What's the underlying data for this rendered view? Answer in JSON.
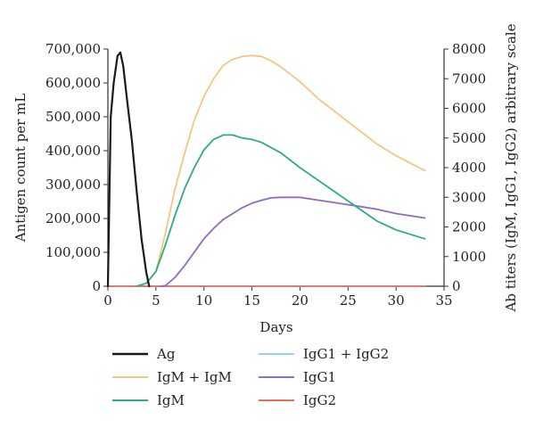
{
  "chart_data": {
    "type": "line",
    "title": "",
    "xlabel": "Days",
    "ylabel": "Antigen count per mL",
    "ylabel_right": "Ab titers (IgM, IgG1, IgG2) arbitrary scale",
    "xlim": [
      0,
      35
    ],
    "ylim": [
      0,
      700000
    ],
    "ylim_right": [
      0,
      8000
    ],
    "x_ticks": [
      0,
      5,
      10,
      15,
      20,
      25,
      30,
      35
    ],
    "y_ticks": [
      0,
      100000,
      200000,
      300000,
      400000,
      500000,
      600000,
      700000
    ],
    "y_tick_labels": [
      "0",
      "100,000",
      "200,000",
      "300,000",
      "400,000",
      "500,000",
      "600,000",
      "700,000"
    ],
    "y_ticks_right": [
      0,
      1000,
      2000,
      3000,
      4000,
      5000,
      6000,
      7000,
      8000
    ],
    "grid": false,
    "legend_position": "bottom",
    "series": [
      {
        "name": "Ag",
        "axis": "left",
        "color": "#1a1a1a",
        "x": [
          0,
          0.3,
          0.6,
          1,
          1.3,
          1.6,
          2,
          2.5,
          3,
          3.5,
          4,
          4.3
        ],
        "y": [
          0,
          500000,
          600000,
          680000,
          690000,
          650000,
          550000,
          430000,
          280000,
          140000,
          40000,
          0
        ]
      },
      {
        "name": "IgM + IgM",
        "axis": "right",
        "color": "#f5c77e",
        "x": [
          3,
          4,
          5,
          6,
          7,
          8,
          9,
          10,
          11,
          12,
          13,
          14,
          15,
          16,
          17,
          18,
          20,
          22,
          24,
          26,
          28,
          30,
          33
        ],
        "y": [
          0,
          100,
          500,
          1800,
          3300,
          4500,
          5600,
          6400,
          7000,
          7450,
          7650,
          7750,
          7780,
          7750,
          7600,
          7400,
          6900,
          6300,
          5800,
          5300,
          4800,
          4400,
          3900
        ]
      },
      {
        "name": "IgG1 + IgG2",
        "axis": "right",
        "color": "#9fd0ea",
        "x": [
          0,
          33
        ],
        "y": [
          0,
          0
        ]
      },
      {
        "name": "IgM",
        "axis": "right",
        "color": "#2dab82",
        "x": [
          3,
          4,
          5,
          6,
          7,
          8,
          9,
          10,
          11,
          12,
          13,
          14,
          15,
          16,
          18,
          20,
          22,
          24,
          26,
          28,
          30,
          33
        ],
        "y": [
          0,
          100,
          500,
          1400,
          2400,
          3300,
          4000,
          4600,
          4950,
          5100,
          5100,
          5000,
          4950,
          4850,
          4500,
          4000,
          3550,
          3100,
          2650,
          2200,
          1900,
          1600
        ]
      },
      {
        "name": "IgG1",
        "axis": "right",
        "color": "#8e6cc0",
        "x": [
          5.5,
          6,
          7,
          8,
          9,
          10,
          11,
          12,
          13,
          14,
          15,
          16,
          17,
          18,
          20,
          22,
          24,
          26,
          28,
          30,
          33
        ],
        "y": [
          0,
          20,
          300,
          700,
          1150,
          1600,
          1950,
          2250,
          2450,
          2650,
          2800,
          2900,
          2980,
          3000,
          3000,
          2900,
          2800,
          2700,
          2600,
          2450,
          2300
        ]
      },
      {
        "name": "IgG2",
        "axis": "right",
        "color": "#e3705f",
        "x": [
          0,
          33
        ],
        "y": [
          0,
          0
        ]
      }
    ]
  }
}
